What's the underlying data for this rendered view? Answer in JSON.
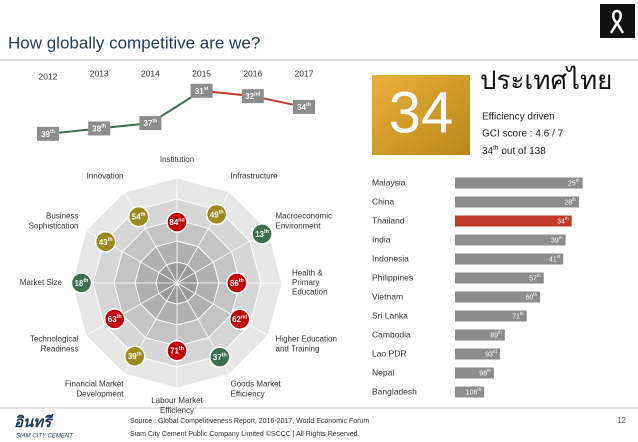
{
  "header": {
    "title": "How globally competitive are we?"
  },
  "chart_data": [
    {
      "type": "line",
      "categories": [
        "2012",
        "2013",
        "2014",
        "2015",
        "2016",
        "2017"
      ],
      "values": [
        39,
        38,
        37,
        31,
        32,
        34
      ],
      "value_labels": [
        "39th",
        "38th",
        "37th",
        "31st",
        "32nd",
        "34th"
      ],
      "ylim": [
        42,
        29
      ],
      "segment_colors": [
        "#3d6e4e",
        "#3d6e4e",
        "#3d6e4e",
        "#c0392b",
        "#c0392b"
      ],
      "label_color": "#8c8c8c"
    },
    {
      "type": "radar",
      "categories": [
        "Institution",
        "Infrastructure",
        "Macroeconomic\nEnvironment",
        "Health &\nPrimary\nEducation",
        "Higher Education\nand Training",
        "Goods Market\nEfficiency",
        "Labour Market\nEfficiency",
        "Financial Market\nDevelopment",
        "Technological\nReadiness",
        "Market Size",
        "Business\nSophistication",
        "Innovation"
      ],
      "values": [
        84,
        49,
        13,
        86,
        62,
        37,
        71,
        39,
        63,
        18,
        43,
        54
      ],
      "value_labels": [
        "84nd",
        "49th",
        "13th",
        "86th",
        "62nd",
        "37th",
        "71th",
        "39th",
        "63th",
        "18th",
        "43th",
        "54th"
      ],
      "colors": [
        "#c00000",
        "#9c8a1c",
        "#3d6e4e",
        "#c00000",
        "#c00000",
        "#3d6e4e",
        "#c00000",
        "#9c8a1c",
        "#c00000",
        "#3d6e4e",
        "#9c8a1c",
        "#9c8a1c"
      ],
      "rlim": [
        200,
        0
      ]
    },
    {
      "type": "bar",
      "orientation": "horizontal",
      "categories": [
        "Malaysia",
        "China",
        "Thailand",
        "India",
        "Indonesia",
        "Philippines",
        "Vietnam",
        "Sri Lanka",
        "Cambodia",
        "Lao PDR",
        "Nepal",
        "Bangladesh"
      ],
      "values": [
        25,
        28,
        34,
        39,
        41,
        57,
        60,
        71,
        89,
        93,
        98,
        106
      ],
      "value_labels": [
        "25th",
        "28th",
        "34th",
        "39th",
        "41st",
        "57th",
        "60th",
        "71th",
        "89th",
        "93rd",
        "98th",
        "106th"
      ],
      "colors": [
        "#8c8c8c",
        "#8c8c8c",
        "#c0392b",
        "#8c8c8c",
        "#8c8c8c",
        "#8c8c8c",
        "#8c8c8c",
        "#8c8c8c",
        "#8c8c8c",
        "#8c8c8c",
        "#8c8c8c",
        "#8c8c8c"
      ],
      "xlim": [
        130,
        0
      ]
    }
  ],
  "rank": {
    "value": 34,
    "country": "ประเทศไทย",
    "lines": [
      "Efficiency driven",
      "GCI score : 4.6 / 7",
      "34th out of 138"
    ]
  },
  "footer": {
    "logo": "อินทรี",
    "logo_sub": "SIAM CITY CEMENT",
    "source": "Source : Global Competitiveness Report, 2016-2017, World Economic Forum",
    "copyright": "Siam City Cement Public Company Limited ©SCCC | All Rights Reserved.",
    "page": 12
  }
}
